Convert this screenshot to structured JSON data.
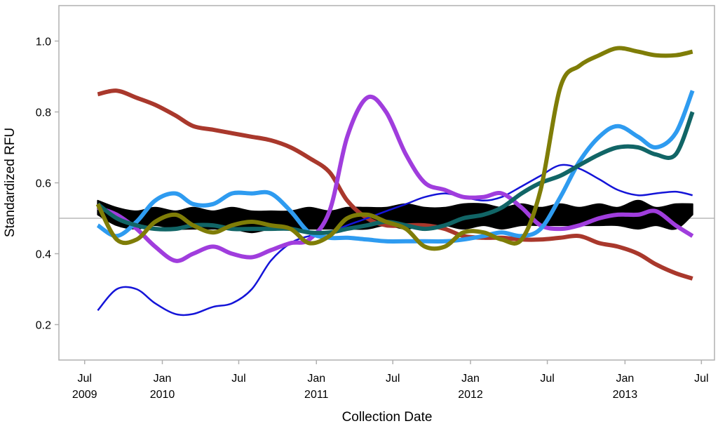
{
  "chart_data": {
    "type": "line",
    "xlabel": "Collection Date",
    "ylabel": "Standardized RFU",
    "ylim": [
      0.1,
      1.1
    ],
    "xlim": [
      "2009-05-01",
      "2013-08-01"
    ],
    "y_ticks": [
      0.2,
      0.4,
      0.6,
      0.8,
      1.0
    ],
    "y_tick_labels": [
      "0.2",
      "0.4",
      "0.6",
      "0.8",
      "1.0"
    ],
    "x_ticks": [
      {
        "date": "2009-07-01",
        "line1": "Jul",
        "line2": "2009"
      },
      {
        "date": "2010-01-01",
        "line1": "Jan",
        "line2": "2010"
      },
      {
        "date": "2010-07-01",
        "line1": "Jul",
        "line2": ""
      },
      {
        "date": "2011-01-01",
        "line1": "Jan",
        "line2": "2011"
      },
      {
        "date": "2011-07-01",
        "line1": "Jul",
        "line2": ""
      },
      {
        "date": "2012-01-01",
        "line1": "Jan",
        "line2": "2012"
      },
      {
        "date": "2012-07-01",
        "line1": "Jul",
        "line2": ""
      },
      {
        "date": "2013-01-01",
        "line1": "Jan",
        "line2": "2013"
      },
      {
        "date": "2013-07-01",
        "line1": "Jul",
        "line2": ""
      }
    ],
    "reference_line": {
      "y": 0.5,
      "color": "#b8b8b8"
    },
    "band": {
      "color": "#000000",
      "x": [
        "2009-08-01",
        "2009-09-15",
        "2009-11-01",
        "2009-12-15",
        "2010-02-01",
        "2010-03-15",
        "2010-05-01",
        "2010-06-15",
        "2010-08-01",
        "2010-09-15",
        "2010-11-01",
        "2010-12-15",
        "2011-02-01",
        "2011-03-15",
        "2011-05-01",
        "2011-06-15",
        "2011-08-01",
        "2011-09-15",
        "2011-11-01",
        "2011-12-15",
        "2012-02-01",
        "2012-03-15",
        "2012-05-01",
        "2012-06-15",
        "2012-08-01",
        "2012-09-15",
        "2012-11-01",
        "2012-12-15",
        "2013-02-01",
        "2013-03-15",
        "2013-05-01",
        "2013-06-10"
      ],
      "upper": [
        0.55,
        0.53,
        0.52,
        0.53,
        0.52,
        0.53,
        0.52,
        0.53,
        0.52,
        0.52,
        0.52,
        0.53,
        0.52,
        0.53,
        0.53,
        0.53,
        0.54,
        0.53,
        0.53,
        0.54,
        0.54,
        0.53,
        0.54,
        0.53,
        0.54,
        0.53,
        0.54,
        0.53,
        0.55,
        0.53,
        0.54,
        0.54
      ],
      "lower": [
        0.51,
        0.48,
        0.47,
        0.48,
        0.47,
        0.47,
        0.47,
        0.47,
        0.46,
        0.47,
        0.47,
        0.47,
        0.47,
        0.47,
        0.47,
        0.48,
        0.47,
        0.48,
        0.48,
        0.47,
        0.48,
        0.47,
        0.48,
        0.48,
        0.48,
        0.48,
        0.48,
        0.48,
        0.47,
        0.48,
        0.47,
        0.51
      ]
    },
    "series": [
      {
        "color": "#a9382c",
        "width": 6,
        "x": [
          "2009-08-01",
          "2009-09-15",
          "2009-11-01",
          "2009-12-15",
          "2010-02-01",
          "2010-03-15",
          "2010-05-01",
          "2010-06-15",
          "2010-08-01",
          "2010-09-15",
          "2010-11-01",
          "2010-12-15",
          "2011-02-01",
          "2011-03-15",
          "2011-05-01",
          "2011-06-15",
          "2011-08-01",
          "2011-09-15",
          "2011-11-01",
          "2011-12-15",
          "2012-02-01",
          "2012-03-15",
          "2012-05-01",
          "2012-06-15",
          "2012-08-01",
          "2012-09-15",
          "2012-11-01",
          "2012-12-15",
          "2013-02-01",
          "2013-03-15",
          "2013-05-01",
          "2013-06-10"
        ],
        "y": [
          0.85,
          0.86,
          0.84,
          0.82,
          0.79,
          0.76,
          0.75,
          0.74,
          0.73,
          0.72,
          0.7,
          0.67,
          0.63,
          0.55,
          0.5,
          0.48,
          0.48,
          0.48,
          0.47,
          0.45,
          0.445,
          0.445,
          0.44,
          0.44,
          0.445,
          0.45,
          0.43,
          0.42,
          0.4,
          0.37,
          0.345,
          0.33
        ]
      },
      {
        "color": "#1414d8",
        "width": 2.5,
        "x": [
          "2009-08-01",
          "2009-09-15",
          "2009-11-01",
          "2009-12-15",
          "2010-02-01",
          "2010-03-15",
          "2010-05-01",
          "2010-06-15",
          "2010-08-01",
          "2010-09-15",
          "2010-11-01",
          "2010-12-15",
          "2011-02-01",
          "2011-03-15",
          "2011-05-01",
          "2011-06-15",
          "2011-08-01",
          "2011-09-15",
          "2011-11-01",
          "2011-12-15",
          "2012-02-01",
          "2012-03-15",
          "2012-05-01",
          "2012-06-15",
          "2012-08-01",
          "2012-09-15",
          "2012-11-01",
          "2012-12-15",
          "2013-02-01",
          "2013-03-15",
          "2013-05-01",
          "2013-06-10"
        ],
        "y": [
          0.24,
          0.3,
          0.3,
          0.26,
          0.23,
          0.23,
          0.25,
          0.26,
          0.3,
          0.38,
          0.43,
          0.45,
          0.46,
          0.48,
          0.5,
          0.52,
          0.54,
          0.56,
          0.57,
          0.56,
          0.55,
          0.56,
          0.59,
          0.62,
          0.65,
          0.64,
          0.61,
          0.58,
          0.565,
          0.57,
          0.575,
          0.565
        ]
      },
      {
        "color": "#a03ddd",
        "width": 6,
        "x": [
          "2009-08-01",
          "2009-09-15",
          "2009-11-01",
          "2009-12-15",
          "2010-02-01",
          "2010-03-15",
          "2010-05-01",
          "2010-06-15",
          "2010-08-01",
          "2010-09-15",
          "2010-11-01",
          "2010-12-15",
          "2011-02-01",
          "2011-03-15",
          "2011-05-01",
          "2011-06-15",
          "2011-08-01",
          "2011-09-15",
          "2011-11-01",
          "2011-12-15",
          "2012-02-01",
          "2012-03-15",
          "2012-05-01",
          "2012-06-15",
          "2012-08-01",
          "2012-09-15",
          "2012-11-01",
          "2012-12-15",
          "2013-02-01",
          "2013-03-15",
          "2013-05-01",
          "2013-06-10"
        ],
        "y": [
          0.53,
          0.51,
          0.47,
          0.42,
          0.38,
          0.4,
          0.42,
          0.4,
          0.39,
          0.41,
          0.43,
          0.44,
          0.52,
          0.73,
          0.84,
          0.8,
          0.68,
          0.6,
          0.58,
          0.56,
          0.56,
          0.57,
          0.53,
          0.48,
          0.47,
          0.48,
          0.5,
          0.51,
          0.51,
          0.52,
          0.48,
          0.45
        ]
      },
      {
        "color": "#2e9bf0",
        "width": 6,
        "x": [
          "2009-08-01",
          "2009-09-15",
          "2009-11-01",
          "2009-12-15",
          "2010-02-01",
          "2010-03-15",
          "2010-05-01",
          "2010-06-15",
          "2010-08-01",
          "2010-09-15",
          "2010-11-01",
          "2010-12-15",
          "2011-02-01",
          "2011-03-15",
          "2011-05-01",
          "2011-06-15",
          "2011-08-01",
          "2011-09-15",
          "2011-11-01",
          "2011-12-15",
          "2012-02-01",
          "2012-03-15",
          "2012-05-01",
          "2012-06-15",
          "2012-08-01",
          "2012-09-15",
          "2012-11-01",
          "2012-12-15",
          "2013-02-01",
          "2013-03-15",
          "2013-05-01",
          "2013-06-10"
        ],
        "y": [
          0.48,
          0.45,
          0.49,
          0.55,
          0.57,
          0.54,
          0.54,
          0.57,
          0.57,
          0.57,
          0.52,
          0.46,
          0.445,
          0.445,
          0.44,
          0.435,
          0.435,
          0.435,
          0.435,
          0.44,
          0.45,
          0.46,
          0.45,
          0.47,
          0.56,
          0.66,
          0.73,
          0.76,
          0.73,
          0.7,
          0.74,
          0.86
        ]
      },
      {
        "color": "#116566",
        "width": 6,
        "x": [
          "2009-08-01",
          "2009-09-15",
          "2009-11-01",
          "2009-12-15",
          "2010-02-01",
          "2010-03-15",
          "2010-05-01",
          "2010-06-15",
          "2010-08-01",
          "2010-09-15",
          "2010-11-01",
          "2010-12-15",
          "2011-02-01",
          "2011-03-15",
          "2011-05-01",
          "2011-06-15",
          "2011-08-01",
          "2011-09-15",
          "2011-11-01",
          "2011-12-15",
          "2012-02-01",
          "2012-03-15",
          "2012-05-01",
          "2012-06-15",
          "2012-08-01",
          "2012-09-15",
          "2012-11-01",
          "2012-12-15",
          "2013-02-01",
          "2013-03-15",
          "2013-05-01",
          "2013-06-10"
        ],
        "y": [
          0.54,
          0.5,
          0.48,
          0.47,
          0.47,
          0.48,
          0.48,
          0.47,
          0.47,
          0.47,
          0.47,
          0.46,
          0.46,
          0.47,
          0.48,
          0.49,
          0.48,
          0.47,
          0.48,
          0.5,
          0.51,
          0.53,
          0.57,
          0.6,
          0.62,
          0.65,
          0.68,
          0.7,
          0.7,
          0.68,
          0.68,
          0.8
        ]
      },
      {
        "color": "#7f7d07",
        "width": 6,
        "x": [
          "2009-08-01",
          "2009-09-15",
          "2009-11-01",
          "2009-12-15",
          "2010-02-01",
          "2010-03-15",
          "2010-05-01",
          "2010-06-15",
          "2010-08-01",
          "2010-09-15",
          "2010-11-01",
          "2010-12-15",
          "2011-02-01",
          "2011-03-15",
          "2011-05-01",
          "2011-06-15",
          "2011-08-01",
          "2011-09-15",
          "2011-11-01",
          "2011-12-15",
          "2012-02-01",
          "2012-03-15",
          "2012-05-01",
          "2012-06-15",
          "2012-08-01",
          "2012-09-15",
          "2012-11-01",
          "2012-12-15",
          "2013-02-01",
          "2013-03-15",
          "2013-05-01",
          "2013-06-10"
        ],
        "y": [
          0.54,
          0.44,
          0.44,
          0.49,
          0.51,
          0.48,
          0.46,
          0.48,
          0.49,
          0.48,
          0.47,
          0.43,
          0.45,
          0.5,
          0.51,
          0.49,
          0.47,
          0.42,
          0.42,
          0.46,
          0.46,
          0.44,
          0.44,
          0.58,
          0.87,
          0.93,
          0.96,
          0.98,
          0.97,
          0.96,
          0.96,
          0.97
        ]
      }
    ]
  }
}
